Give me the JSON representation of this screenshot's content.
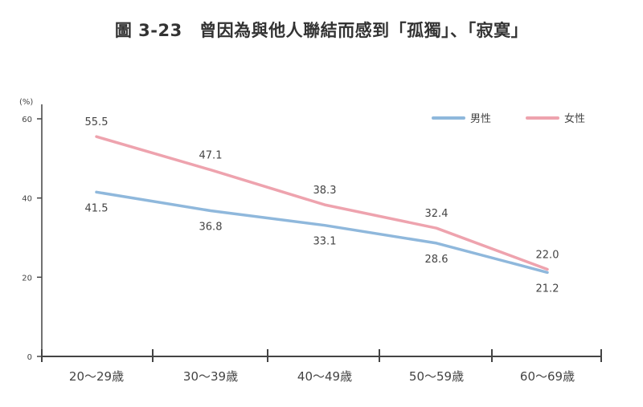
{
  "title": "圖 3-23　曾因為與他人聯結而感到「孤獨」、「寂寞」",
  "colors": {
    "male": "#8fb8dc",
    "female": "#eea3ae",
    "axis": "#444444"
  },
  "chart_data": {
    "type": "line",
    "title": "圖 3-23　曾因為與他人聯結而感到「孤獨」、「寂寞」",
    "unit": "(%)",
    "categories": [
      "20〜29歳",
      "30〜39歳",
      "40〜49歳",
      "50〜59歳",
      "60〜69歳"
    ],
    "yticks": [
      "0",
      "20",
      "40",
      "60"
    ],
    "ylim": [
      0,
      60
    ],
    "grid": false,
    "legend_position": "top-right",
    "series": [
      {
        "name": "男性",
        "values": [
          41.5,
          36.8,
          33.1,
          28.6,
          21.2
        ],
        "labels": [
          "41.5",
          "36.8",
          "33.1",
          "28.6",
          "21.2"
        ]
      },
      {
        "name": "女性",
        "values": [
          55.5,
          47.1,
          38.3,
          32.4,
          22.0
        ],
        "labels": [
          "55.5",
          "47.1",
          "38.3",
          "32.4",
          "22.0"
        ]
      }
    ]
  }
}
